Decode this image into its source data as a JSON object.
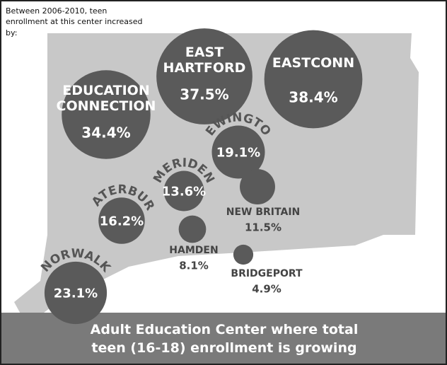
{
  "note": "Between 2006-2010, teen enrollment at this center increased by:",
  "caption": "Adult Education Center where total teen (16-18) enrollment is growing",
  "centers": [
    {
      "name": "EAST HARTFORD",
      "value": 37.5,
      "value_label": "37.5%"
    },
    {
      "name": "EASTCONN",
      "value": 38.4,
      "value_label": "38.4%"
    },
    {
      "name": "EDUCATION CONNECTION",
      "value": 34.4,
      "value_label": "34.4%"
    },
    {
      "name": "NEWINGTON",
      "value": 19.1,
      "value_label": "19.1%"
    },
    {
      "name": "MERIDEN",
      "value": 13.6,
      "value_label": "13.6%"
    },
    {
      "name": "NEW BRITAIN",
      "value": 11.5,
      "value_label": "11.5%"
    },
    {
      "name": "WATERBURY",
      "value": 16.2,
      "value_label": "16.2%"
    },
    {
      "name": "HAMDEN",
      "value": 8.1,
      "value_label": "8.1%"
    },
    {
      "name": "BRIDGEPORT",
      "value": 4.9,
      "value_label": "4.9%"
    },
    {
      "name": "NORWALK",
      "value": 23.1,
      "value_label": "23.1%"
    }
  ]
}
